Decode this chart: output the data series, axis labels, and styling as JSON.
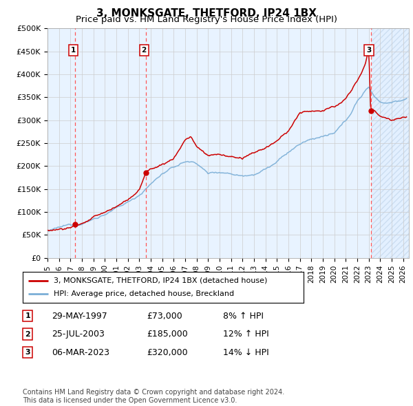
{
  "title": "3, MONKSGATE, THETFORD, IP24 1BX",
  "subtitle": "Price paid vs. HM Land Registry's House Price Index (HPI)",
  "ylim": [
    0,
    500000
  ],
  "yticks": [
    0,
    50000,
    100000,
    150000,
    200000,
    250000,
    300000,
    350000,
    400000,
    450000,
    500000
  ],
  "ytick_labels": [
    "£0",
    "£50K",
    "£100K",
    "£150K",
    "£200K",
    "£250K",
    "£300K",
    "£350K",
    "£400K",
    "£450K",
    "£500K"
  ],
  "xlim_start": 1995.0,
  "xlim_end": 2026.5,
  "xtick_years": [
    1995,
    1996,
    1997,
    1998,
    1999,
    2000,
    2001,
    2002,
    2003,
    2004,
    2005,
    2006,
    2007,
    2008,
    2009,
    2010,
    2011,
    2012,
    2013,
    2014,
    2015,
    2016,
    2017,
    2018,
    2019,
    2020,
    2021,
    2022,
    2023,
    2024,
    2025,
    2026
  ],
  "hpi_color": "#7aaed6",
  "price_color": "#cc0000",
  "sale_dot_color": "#cc0000",
  "shade_color": "#ddeeff",
  "grid_color": "#cccccc",
  "dashed_line_color": "#ff5555",
  "purchases": [
    {
      "label": "1",
      "year": 1997.41,
      "price": 73000,
      "date": "29-MAY-1997",
      "hpi_rel": "8% ↑ HPI"
    },
    {
      "label": "2",
      "year": 2003.56,
      "price": 185000,
      "date": "25-JUL-2003",
      "hpi_rel": "12% ↑ HPI"
    },
    {
      "label": "3",
      "year": 2023.17,
      "price": 320000,
      "date": "06-MAR-2023",
      "hpi_rel": "14% ↓ HPI"
    }
  ],
  "legend_label_price": "3, MONKSGATE, THETFORD, IP24 1BX (detached house)",
  "legend_label_hpi": "HPI: Average price, detached house, Breckland",
  "footer": "Contains HM Land Registry data © Crown copyright and database right 2024.\nThis data is licensed under the Open Government Licence v3.0.",
  "title_fontsize": 11,
  "subtitle_fontsize": 9.5,
  "tick_fontsize": 8,
  "legend_fontsize": 8,
  "table_fontsize": 9,
  "footer_fontsize": 7
}
